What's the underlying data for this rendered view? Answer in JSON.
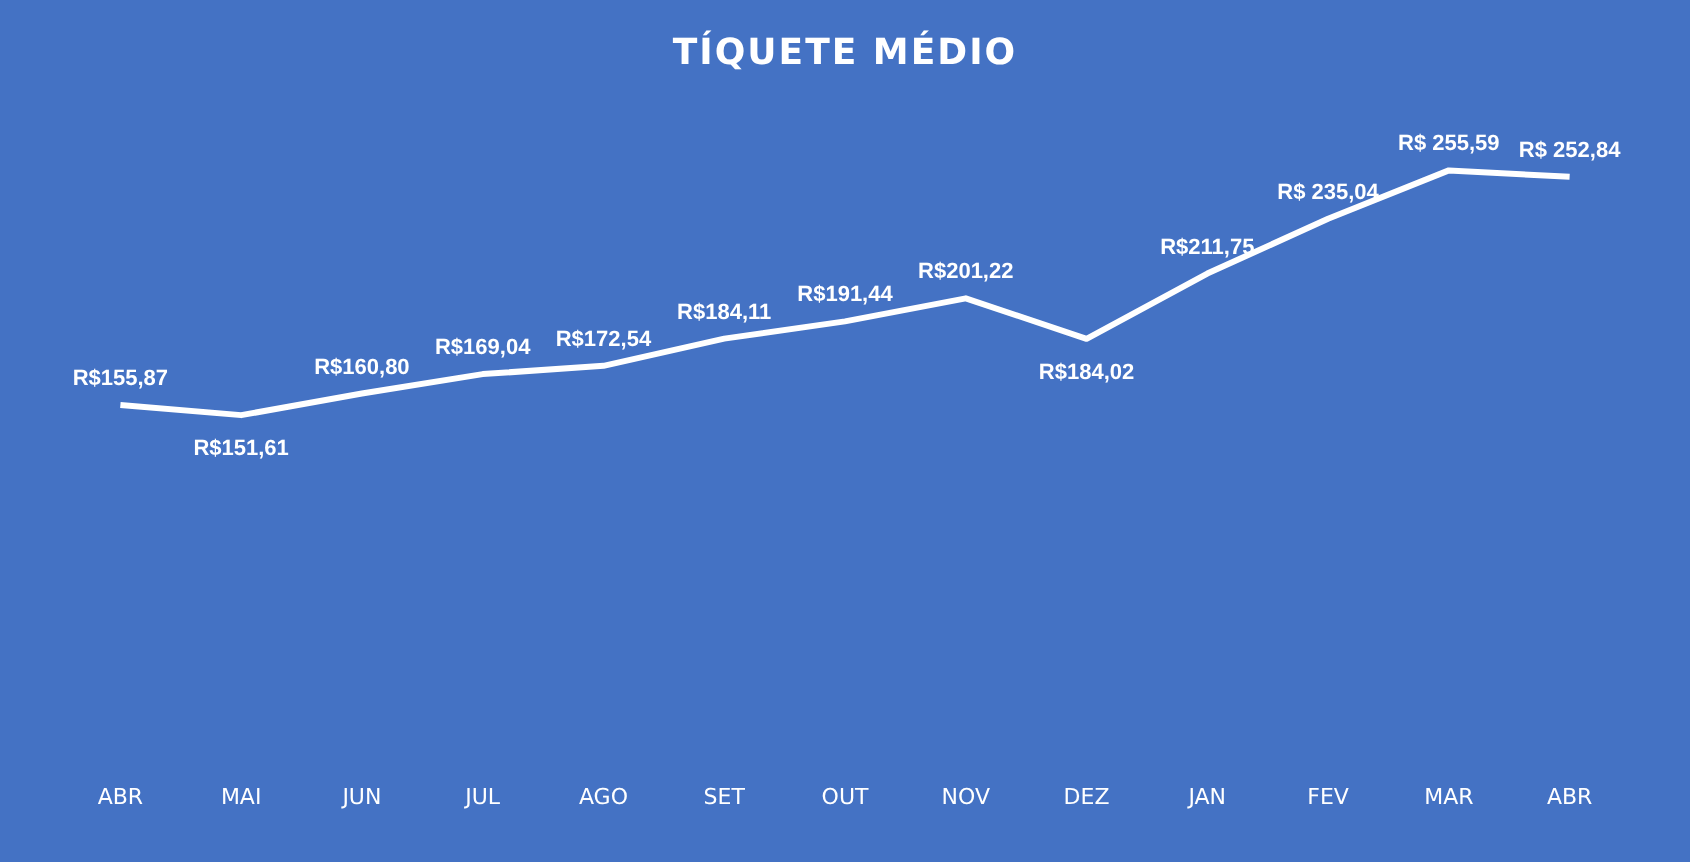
{
  "chart_data": {
    "type": "line",
    "title": "TÍQUETE MÉDIO",
    "categories": [
      "ABR",
      "MAI",
      "JUN",
      "JUL",
      "AGO",
      "SET",
      "OUT",
      "NOV",
      "DEZ",
      "JAN",
      "FEV",
      "MAR",
      "ABR"
    ],
    "series": [
      {
        "color": "#ffffff",
        "values": [
          155.87,
          151.61,
          160.8,
          169.04,
          172.54,
          184.11,
          191.44,
          201.22,
          184.02,
          211.75,
          235.04,
          255.59,
          252.84
        ],
        "value_labels": [
          "R$155,87",
          "R$151,61",
          "R$160,80",
          "R$169,04",
          "R$172,54",
          "R$184,11",
          "R$191,44",
          "R$201,22",
          "R$184,02",
          "R$211,75",
          "R$ 235,04",
          "R$ 255,59",
          "R$ 252,84"
        ]
      }
    ],
    "grid": false,
    "legend": false,
    "marker": "none",
    "line_style": "solid",
    "tick_labels": "x"
  }
}
